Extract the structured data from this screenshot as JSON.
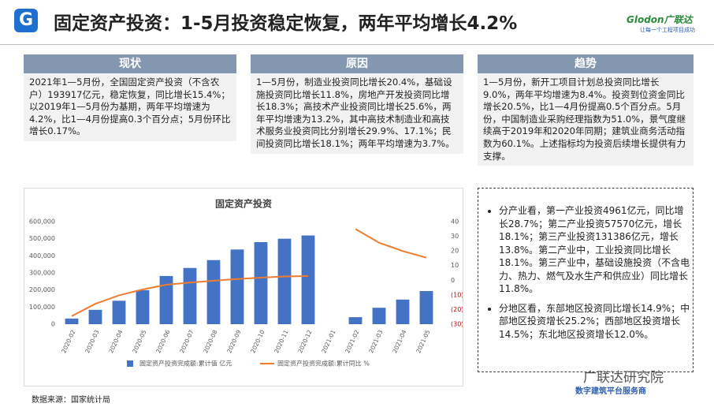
{
  "header": {
    "title": "固定资产投资：1-5月投资稳定恢复，两年平均增长4.2%",
    "logo_letter": "G",
    "brand": "Glodon广联达",
    "brand_slogan": "让每一个工程项目成功"
  },
  "panels": [
    {
      "title": "现状",
      "text": "2021年1—5月份，全国固定资产投资（不含农户）193917亿元，稳定恢复，同比增长15.4%；以2019年1—5月份为基期，两年平均增速为4.2%，比1—4月份提高0.3个百分点；5月份环比增长0.17%。"
    },
    {
      "title": "原因",
      "text": "1—5月份，制造业投资同比增长20.4%，基础设施投资同比增长11.8%，房地产开发投资同比增长18.3%；高技术产业投资同比增长25.6%，两年平均增速为13.2%，其中高技术制造业和高技术服务业投资同比分别增长29.9%、17.1%；民间投资同比增长18.1%；两年平均增速为3.7%。"
    },
    {
      "title": "趋势",
      "text": "1—5月份，新开工项目计划总投资同比增长9.0%，两年平均增速为8.4%。投资到位资金同比增长20.5%，比1—4月份提高0.5个百分点。5月份，中国制造业采购经理指数为51.0%，景气度继续高于2019年和2020年同期；建筑业商务活动指数为60.1%。上述指标均为投资后续增长提供有力支撑。"
    }
  ],
  "bullets": [
    "分产业看，第一产业投资4961亿元，同比增长28.7%；第二产业投资57570亿元，增长18.1%；第三产业投资131386亿元，增长13.8%。第二产业中，工业投资同比增长18.1%。第三产业中，基础设施投资（不含电力、热力、燃气及水生产和供应业）同比增长11.8%。",
    "分地区看，东部地区投资同比增长14.9%；中部地区投资增长25.2%；西部地区投资增长14.5%；东北地区投资增长12.0%。"
  ],
  "source": "数据来源：国家统计局",
  "watermark": {
    "name": "广联达研究院",
    "tagline": "数字建筑平台服务商"
  },
  "chart_data": {
    "type": "bar-line",
    "title": "固定资产投资",
    "categories": [
      "2020-02",
      "2020-03",
      "2020-04",
      "2020-05",
      "2020-06",
      "2020-07",
      "2020-08",
      "2020-09",
      "2020-10",
      "2020-11",
      "2020-12",
      "2021-01",
      "2021-02",
      "2021-03",
      "2021-04",
      "2021-05"
    ],
    "series": [
      {
        "name": "固定资产投资完成额:累计值 亿元",
        "type": "bar",
        "color": "#4472c4",
        "values": [
          33000,
          84000,
          137000,
          199000,
          282000,
          329000,
          375000,
          437000,
          480000,
          500000,
          519000,
          null,
          41000,
          96000,
          144000,
          194000
        ]
      },
      {
        "name": "固定资产投资完成额:累计同比 %",
        "type": "line",
        "axis": "y2",
        "color": "#ed7d31",
        "values": [
          -24.5,
          -16.1,
          -10.3,
          -6.3,
          -3.1,
          -1.6,
          -0.3,
          0.8,
          1.8,
          2.6,
          2.9,
          null,
          35.0,
          25.6,
          19.9,
          15.4
        ]
      }
    ],
    "ylim": [
      0,
      600000
    ],
    "yticks": [
      0,
      {
        "value": 100000,
        "label": "100,000"
      },
      {
        "value": 200000,
        "label": "200,000"
      },
      {
        "value": 300000,
        "label": "300,000"
      },
      {
        "value": 400000,
        "label": "400,000"
      },
      {
        "value": 500000,
        "label": "500,000"
      },
      {
        "value": 600000,
        "label": "600,000"
      }
    ],
    "y2lim": [
      -30,
      40
    ],
    "y2ticks": [
      {
        "value": -30,
        "label": "(30)"
      },
      {
        "value": -20,
        "label": "(20)"
      },
      {
        "value": -10,
        "label": "(10)"
      },
      0,
      10,
      20,
      30,
      40
    ],
    "negative_tick_color": "#c00000",
    "grid": false,
    "legend": "bottom"
  }
}
